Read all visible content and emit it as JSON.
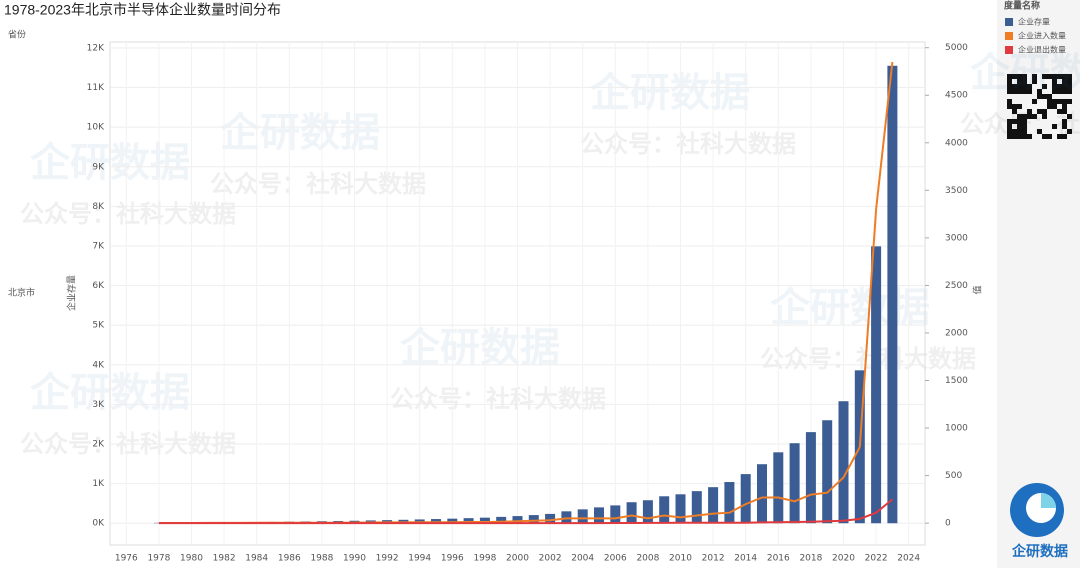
{
  "chart_data": {
    "type": "bar",
    "title": "1978-2023年北京市半导体企业数量时间分布",
    "row_header": "省份",
    "row_label": "北京市",
    "y_label": "企业存量",
    "y2_label": "值",
    "legend_title": "度量名称",
    "x": [
      1978,
      1979,
      1980,
      1981,
      1982,
      1983,
      1984,
      1985,
      1986,
      1987,
      1988,
      1989,
      1990,
      1991,
      1992,
      1993,
      1994,
      1995,
      1996,
      1997,
      1998,
      1999,
      2000,
      2001,
      2002,
      2003,
      2004,
      2005,
      2006,
      2007,
      2008,
      2009,
      2010,
      2011,
      2012,
      2013,
      2014,
      2015,
      2016,
      2017,
      2018,
      2019,
      2020,
      2021,
      2022,
      2023
    ],
    "xlim": [
      1975,
      2025
    ],
    "xticks": [
      1976,
      1978,
      1980,
      1982,
      1984,
      1986,
      1988,
      1990,
      1992,
      1994,
      1996,
      1998,
      2000,
      2002,
      2004,
      2006,
      2008,
      2010,
      2012,
      2014,
      2016,
      2018,
      2020,
      2022,
      2024
    ],
    "ylim": [
      -550,
      12150
    ],
    "yticks": [
      {
        "value": 0,
        "label": "0K"
      },
      {
        "value": 1000,
        "label": "1K"
      },
      {
        "value": 2000,
        "label": "2K"
      },
      {
        "value": 3000,
        "label": "3K"
      },
      {
        "value": 4000,
        "label": "4K"
      },
      {
        "value": 5000,
        "label": "5K"
      },
      {
        "value": 6000,
        "label": "6K"
      },
      {
        "value": 7000,
        "label": "7K"
      },
      {
        "value": 8000,
        "label": "8K"
      },
      {
        "value": 9000,
        "label": "9K"
      },
      {
        "value": 10000,
        "label": "10K"
      },
      {
        "value": 11000,
        "label": "11K"
      },
      {
        "value": 12000,
        "label": "12K"
      }
    ],
    "y2lim": [
      -230,
      5060
    ],
    "y2ticks": [
      0,
      500,
      1000,
      1500,
      2000,
      2500,
      3000,
      3500,
      4000,
      4500,
      5000
    ],
    "grid": true,
    "series": [
      {
        "name": "企业存量",
        "color": "#3b5d94",
        "type": "bar",
        "axis": "y",
        "values": [
          10,
          12,
          15,
          18,
          20,
          24,
          28,
          33,
          38,
          44,
          50,
          55,
          62,
          70,
          78,
          86,
          95,
          105,
          115,
          128,
          140,
          160,
          180,
          205,
          235,
          300,
          350,
          400,
          450,
          530,
          580,
          680,
          730,
          810,
          910,
          1040,
          1240,
          1490,
          1790,
          2020,
          2300,
          2600,
          3080,
          3860,
          6990,
          11550
        ]
      },
      {
        "name": "企业进入数量",
        "color": "#ee7d26",
        "type": "line",
        "axis": "y2",
        "values": [
          1,
          1,
          1,
          2,
          2,
          2,
          3,
          3,
          4,
          4,
          5,
          5,
          6,
          7,
          8,
          8,
          9,
          10,
          10,
          12,
          12,
          15,
          20,
          25,
          30,
          50,
          50,
          50,
          50,
          80,
          50,
          80,
          60,
          80,
          100,
          110,
          200,
          270,
          270,
          230,
          300,
          320,
          480,
          800,
          3300,
          4850
        ]
      },
      {
        "name": "企业退出数量",
        "color": "#e0393e",
        "type": "line",
        "axis": "y2",
        "values": [
          0,
          0,
          0,
          0,
          0,
          0,
          0,
          0,
          0,
          0,
          0,
          0,
          0,
          0,
          0,
          0,
          0,
          0,
          0,
          0,
          0,
          0,
          0,
          0,
          0,
          0,
          0,
          0,
          1,
          1,
          2,
          2,
          3,
          3,
          4,
          5,
          5,
          8,
          10,
          12,
          15,
          20,
          25,
          45,
          110,
          250
        ]
      }
    ]
  },
  "watermark": {
    "brand": "企研数据",
    "account": "公众号：社科大数据"
  },
  "logo_text": "企研数据"
}
